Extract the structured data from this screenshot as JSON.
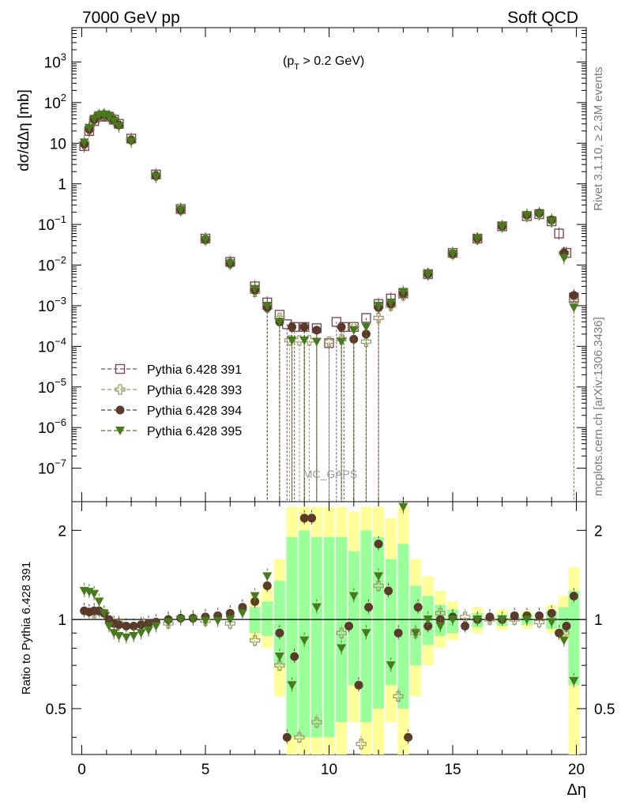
{
  "header": {
    "left": "7000 GeV pp",
    "right": "Soft QCD"
  },
  "side_text": {
    "rivet": "Rivet 3.1.10, ≥ 2.3M events",
    "mcplots": "mcplots.cern.ch [arXiv:1306.3436]"
  },
  "colors": {
    "s391": "#7a4a5a",
    "s393": "#9a9a6a",
    "s394": "#5a3a2a",
    "s395": "#4a7a20",
    "band_yellow": "#ffff99",
    "band_green": "#99ff99"
  },
  "chart_data": [
    {
      "type": "scatter",
      "panel": "main",
      "title": "(p_T > 0.2 GeV)",
      "title_parts": {
        "pre": "(p",
        "sub": "T",
        "post": " > 0.2 GeV)"
      },
      "ylabel": "dσ/dΔη [mb]",
      "xlabel": "Δη",
      "xlim": [
        -0.4,
        20.4
      ],
      "ylim": [
        1.5e-08,
        7000
      ],
      "log_y": true,
      "y_tick_labels": [
        "10^3",
        "10^2",
        "10",
        "1",
        "10^-1",
        "10^-2",
        "10^-3",
        "10^-4",
        "10^-5",
        "10^-6",
        "10^-7"
      ],
      "annotation": "MC_GAPS",
      "legend_position": "left",
      "series": [
        {
          "name": "Pythia 6.428 391",
          "marker": "open-square",
          "color_key": "s391",
          "x": [
            0.1,
            0.3,
            0.5,
            0.7,
            0.9,
            1.1,
            1.3,
            1.5,
            2.0,
            3.0,
            4.0,
            5.0,
            6.0,
            7.0,
            7.5,
            8.0,
            8.3,
            8.6,
            9.0,
            9.5,
            10.0,
            10.3,
            10.6,
            11.0,
            11.5,
            12.0,
            12.5,
            13.0,
            14.0,
            15.0,
            16.0,
            17.0,
            18.0,
            18.5,
            19.0,
            19.3,
            19.6,
            19.9
          ],
          "y": [
            8.5,
            20,
            35,
            45,
            48,
            45,
            38,
            30,
            13,
            1.7,
            0.24,
            0.045,
            0.012,
            0.003,
            0.0012,
            0.0006,
            0.00035,
            0.0003,
            0.0003,
            0.00028,
            0.00012,
            0.0004,
            0.0003,
            0.0003,
            0.0005,
            0.0011,
            0.0015,
            0.002,
            0.006,
            0.02,
            0.045,
            0.09,
            0.16,
            0.18,
            0.12,
            0.06,
            0.02,
            0.0016
          ]
        },
        {
          "name": "Pythia 6.428 393",
          "marker": "open-cross",
          "color_key": "s393",
          "x": [
            0.1,
            0.3,
            0.5,
            0.7,
            0.9,
            1.1,
            1.3,
            1.5,
            2.0,
            3.0,
            4.0,
            5.0,
            6.0,
            7.0,
            7.5,
            8.0,
            8.4,
            8.8,
            9.2,
            10.0,
            10.5,
            11.0,
            11.5,
            12.0,
            12.5,
            13.0,
            14.0,
            15.0,
            16.0,
            17.0,
            18.0,
            18.5,
            19.0,
            19.5,
            19.9
          ],
          "y": [
            9.5,
            22,
            38,
            48,
            50,
            47,
            39,
            30,
            12.5,
            1.6,
            0.23,
            0.043,
            0.011,
            0.0022,
            0.0009,
            0.0005,
            0.00014,
            0.00014,
            0.00014,
            0.00013,
            0.00015,
            0.0003,
            0.00013,
            0.0005,
            0.001,
            0.0018,
            0.006,
            0.019,
            0.044,
            0.09,
            0.16,
            0.18,
            0.12,
            0.02,
            0.0013
          ]
        },
        {
          "name": "Pythia 6.428 394",
          "marker": "filled-circle",
          "color_key": "s394",
          "x": [
            0.1,
            0.3,
            0.5,
            0.7,
            0.9,
            1.1,
            1.3,
            1.5,
            2.0,
            3.0,
            4.0,
            5.0,
            6.0,
            7.0,
            7.5,
            8.0,
            8.5,
            9.0,
            9.5,
            10.5,
            11.0,
            11.5,
            12.0,
            12.5,
            13.0,
            14.0,
            15.0,
            16.0,
            17.0,
            18.0,
            18.5,
            19.0,
            19.5,
            19.9
          ],
          "y": [
            9.5,
            22,
            38,
            48,
            50,
            46,
            37,
            28,
            12,
            1.6,
            0.23,
            0.043,
            0.011,
            0.0024,
            0.0009,
            0.0004,
            0.0003,
            0.0003,
            0.00025,
            0.0003,
            0.00015,
            0.0002,
            0.0009,
            0.0011,
            0.002,
            0.006,
            0.019,
            0.045,
            0.09,
            0.17,
            0.19,
            0.13,
            0.02,
            0.0018
          ]
        },
        {
          "name": "Pythia 6.428 395",
          "marker": "filled-triangle-down",
          "color_key": "s395",
          "x": [
            0.1,
            0.3,
            0.5,
            0.7,
            0.9,
            1.1,
            1.3,
            1.5,
            2.0,
            3.0,
            4.0,
            5.0,
            6.0,
            7.0,
            7.5,
            8.0,
            8.5,
            9.0,
            9.5,
            10.5,
            11.0,
            11.5,
            12.0,
            12.5,
            13.0,
            14.0,
            15.0,
            16.0,
            17.0,
            18.0,
            18.5,
            19.0,
            19.5,
            19.9
          ],
          "y": [
            10.5,
            24,
            40,
            49,
            50,
            45,
            35,
            26,
            11,
            1.5,
            0.23,
            0.042,
            0.011,
            0.0026,
            0.001,
            0.0004,
            0.00014,
            0.00014,
            0.00013,
            0.00013,
            0.00025,
            0.0003,
            0.001,
            0.0012,
            0.0022,
            0.006,
            0.019,
            0.045,
            0.09,
            0.17,
            0.18,
            0.12,
            0.015,
            0.0009
          ]
        }
      ]
    },
    {
      "type": "scatter",
      "panel": "ratio",
      "ylabel": "Ratio to Pythia 6.428 391",
      "xlabel": "Δη",
      "xlim": [
        -0.4,
        20.4
      ],
      "ylim": [
        0.35,
        2.5
      ],
      "log_y": true,
      "x_tick_labels": [
        "0",
        "5",
        "10",
        "15",
        "20"
      ],
      "y_tick_labels": [
        "0.5",
        "1",
        "2"
      ],
      "reference_line": 1,
      "band_yellow": {
        "x": [
          7.0,
          7.5,
          8.0,
          8.5,
          9.0,
          9.5,
          10.0,
          10.5,
          11.0,
          11.5,
          12.0,
          12.5,
          13.0,
          13.5,
          14.0,
          14.5,
          15.0,
          16.0,
          17.0,
          18.0,
          19.0,
          19.5,
          19.9
        ],
        "lo": [
          0.85,
          0.8,
          0.55,
          0.35,
          0.35,
          0.35,
          0.35,
          0.35,
          0.45,
          0.35,
          0.35,
          0.45,
          0.35,
          0.55,
          0.7,
          0.8,
          0.85,
          0.9,
          0.92,
          0.93,
          0.9,
          0.85,
          0.35
        ],
        "hi": [
          1.2,
          1.3,
          1.6,
          2.4,
          2.4,
          2.4,
          2.4,
          2.4,
          2.3,
          2.4,
          2.4,
          2.2,
          2.4,
          1.6,
          1.4,
          1.25,
          1.15,
          1.1,
          1.08,
          1.07,
          1.12,
          1.2,
          1.5
        ]
      },
      "band_green": {
        "x": [
          7.0,
          7.5,
          8.0,
          8.5,
          9.0,
          9.5,
          10.0,
          10.5,
          11.0,
          11.5,
          12.0,
          12.5,
          13.0,
          13.5,
          14.0,
          14.5,
          15.0,
          16.0,
          17.0,
          18.0,
          19.0,
          19.5,
          19.9
        ],
        "lo": [
          0.9,
          0.88,
          0.7,
          0.4,
          0.4,
          0.4,
          0.4,
          0.45,
          0.6,
          0.45,
          0.5,
          0.6,
          0.5,
          0.7,
          0.82,
          0.88,
          0.9,
          0.94,
          0.95,
          0.96,
          0.93,
          0.9,
          0.6
        ],
        "hi": [
          1.1,
          1.15,
          1.35,
          1.9,
          2.0,
          1.9,
          1.9,
          1.9,
          1.7,
          2.0,
          1.9,
          1.6,
          1.8,
          1.3,
          1.2,
          1.12,
          1.08,
          1.05,
          1.04,
          1.04,
          1.07,
          1.1,
          1.25
        ]
      },
      "series": [
        {
          "name": "Pythia 6.428 393",
          "color_key": "s393",
          "x": [
            0.5,
            1.5,
            2.5,
            3.5,
            5.0,
            6.0,
            7.0,
            8.0,
            8.8,
            9.5,
            10.5,
            11.3,
            12.0,
            12.8,
            13.5,
            14.5,
            15.5,
            16.5,
            17.5,
            18.5,
            19.5
          ],
          "y": [
            1.05,
            0.97,
            0.96,
            0.97,
            0.99,
            0.97,
            0.85,
            0.7,
            0.4,
            0.45,
            0.9,
            0.38,
            1.3,
            0.55,
            0.9,
            1.05,
            1.02,
            1.0,
            1.0,
            0.98,
            0.9
          ]
        },
        {
          "name": "Pythia 6.428 394",
          "color_key": "s394",
          "x": [
            0.1,
            0.3,
            0.5,
            0.7,
            0.9,
            1.1,
            1.3,
            1.5,
            1.8,
            2.1,
            2.4,
            2.7,
            3.0,
            3.5,
            4.0,
            4.5,
            5.0,
            5.5,
            6.0,
            6.5,
            7.0,
            7.5,
            8.0,
            8.3,
            8.6,
            9.0,
            9.3,
            10.8,
            11.2,
            11.6,
            12.0,
            12.4,
            12.8,
            13.2,
            13.6,
            14.0,
            14.5,
            15.0,
            15.5,
            16.0,
            16.5,
            17.0,
            17.5,
            18.0,
            18.5,
            19.0,
            19.3,
            19.6,
            19.9
          ],
          "y": [
            1.07,
            1.06,
            1.07,
            1.07,
            1.05,
            1.0,
            0.97,
            0.96,
            0.95,
            0.95,
            0.96,
            0.97,
            0.98,
            1.0,
            1.01,
            1.01,
            1.02,
            1.03,
            1.05,
            1.1,
            1.15,
            1.3,
            0.9,
            0.4,
            0.75,
            2.2,
            2.2,
            0.95,
            0.6,
            1.1,
            1.8,
            1.25,
            0.9,
            0.4,
            1.1,
            0.95,
            1.0,
            1.02,
            0.95,
            1.0,
            1.02,
            1.0,
            1.03,
            1.03,
            1.03,
            1.05,
            0.9,
            0.95,
            1.2
          ]
        },
        {
          "name": "Pythia 6.428 395",
          "color_key": "s395",
          "x": [
            0.1,
            0.3,
            0.5,
            0.7,
            0.9,
            1.1,
            1.3,
            1.5,
            1.8,
            2.1,
            2.4,
            2.7,
            3.0,
            3.5,
            4.0,
            4.5,
            5.0,
            5.5,
            6.0,
            6.5,
            7.0,
            7.5,
            8.0,
            8.5,
            9.0,
            9.5,
            10.5,
            11.0,
            11.5,
            12.0,
            12.5,
            13.0,
            13.5,
            14.0,
            14.5,
            15.0,
            16.0,
            17.0,
            18.0,
            19.0,
            19.5,
            19.9
          ],
          "y": [
            1.25,
            1.24,
            1.22,
            1.15,
            1.05,
            0.95,
            0.9,
            0.88,
            0.87,
            0.88,
            0.9,
            0.92,
            0.95,
            0.98,
            1.0,
            1.0,
            0.99,
            0.99,
            1.0,
            1.05,
            1.2,
            1.4,
            0.75,
            0.6,
            0.85,
            1.1,
            0.8,
            1.2,
            0.9,
            1.4,
            0.7,
            2.4,
            0.9,
            1.0,
            0.95,
            1.0,
            1.0,
            1.0,
            1.0,
            0.98,
            0.85,
            0.62
          ]
        }
      ]
    }
  ]
}
